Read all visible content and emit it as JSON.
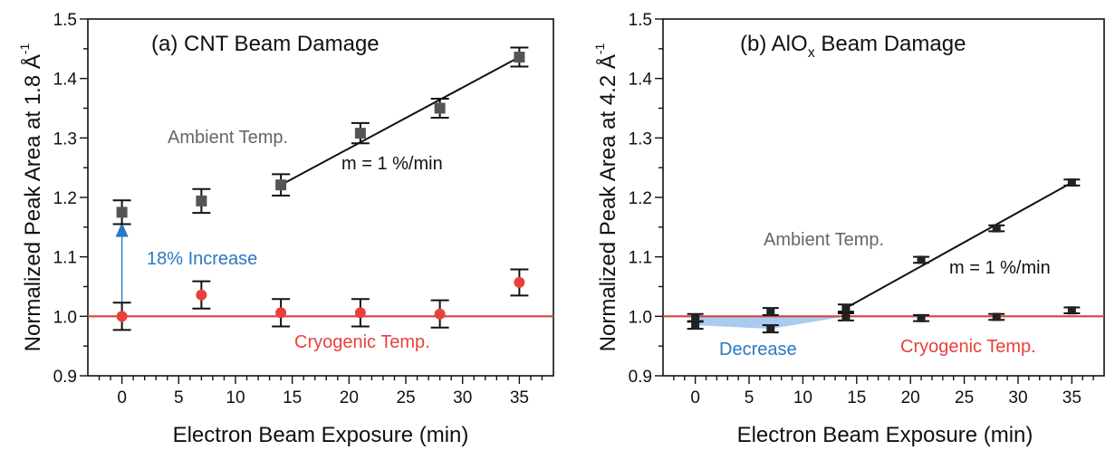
{
  "chart_data": [
    {
      "type": "scatter",
      "title": "(a) CNT Beam Damage",
      "xlabel": "Electron Beam Exposure (min)",
      "ylabel": "Normalized Peak Area at 1.8 Å",
      "ylabel_sup": "-1",
      "xlim": [
        -3,
        38
      ],
      "ylim": [
        0.9,
        1.5
      ],
      "xticks": [
        0,
        5,
        10,
        15,
        20,
        25,
        30,
        35
      ],
      "yticks": [
        0.9,
        1.0,
        1.1,
        1.2,
        1.3,
        1.4,
        1.5
      ],
      "series": [
        {
          "label": "Ambient Temp.",
          "color": "#555555",
          "marker": "square",
          "x": [
            0,
            7,
            14,
            21,
            28,
            35
          ],
          "y": [
            1.175,
            1.194,
            1.221,
            1.308,
            1.35,
            1.436
          ],
          "err": [
            0.02,
            0.02,
            0.018,
            0.017,
            0.016,
            0.016
          ]
        },
        {
          "label": "Cryogenic Temp.",
          "color": "#e8413b",
          "marker": "circle",
          "x": [
            0,
            7,
            14,
            21,
            28,
            35
          ],
          "y": [
            1.0,
            1.036,
            1.006,
            1.006,
            1.004,
            1.057
          ],
          "err": [
            0.023,
            0.023,
            0.023,
            0.023,
            0.023,
            0.022
          ]
        }
      ],
      "fit": {
        "x": [
          14,
          35
        ],
        "y": [
          1.221,
          1.436
        ],
        "label": "m = 1 %/min"
      },
      "reference_line": {
        "y": 1.0,
        "color": "#d94040"
      },
      "annotation": {
        "text": "18% Increase",
        "color": "#2a78c2",
        "x": 0,
        "from_y": 1.0,
        "to_y": 1.158
      }
    },
    {
      "type": "scatter",
      "title_main": "(b) AlO",
      "title_sub": "x",
      "title_rest": " Beam Damage",
      "xlabel": "Electron Beam Exposure (min)",
      "ylabel": "Normalized Peak Area at 4.2 Å",
      "ylabel_sup": "-1",
      "xlim": [
        -3,
        38
      ],
      "ylim": [
        0.9,
        1.5
      ],
      "xticks": [
        0,
        5,
        10,
        15,
        20,
        25,
        30,
        35
      ],
      "yticks": [
        0.9,
        1.0,
        1.1,
        1.2,
        1.3,
        1.4,
        1.5
      ],
      "series": [
        {
          "label": "Ambient Temp.",
          "color": "#222222",
          "marker": "square",
          "x": [
            0,
            7,
            14,
            21,
            28,
            35
          ],
          "y": [
            0.985,
            0.979,
            1.014,
            1.095,
            1.148,
            1.225
          ],
          "err": [
            0.006,
            0.006,
            0.006,
            0.005,
            0.005,
            0.005
          ]
        },
        {
          "label": "Cryogenic Temp.",
          "color": "#222222",
          "marker": "square",
          "x": [
            0,
            7,
            14,
            21,
            28,
            35
          ],
          "y": [
            0.998,
            1.008,
            0.999,
            0.997,
            0.999,
            1.01
          ],
          "err": [
            0.006,
            0.006,
            0.006,
            0.005,
            0.005,
            0.005
          ]
        }
      ],
      "fit": {
        "x": [
          14,
          35
        ],
        "y": [
          1.014,
          1.225
        ],
        "label": "m = 1 %/min"
      },
      "reference_line": {
        "y": 1.0,
        "color": "#d94040"
      },
      "annotation": {
        "text": "Decrease",
        "color": "#2a78c2",
        "fill": "#a9cbef"
      },
      "ambient_label": "Ambient Temp.",
      "cryo_label": "Cryogenic Temp."
    }
  ]
}
